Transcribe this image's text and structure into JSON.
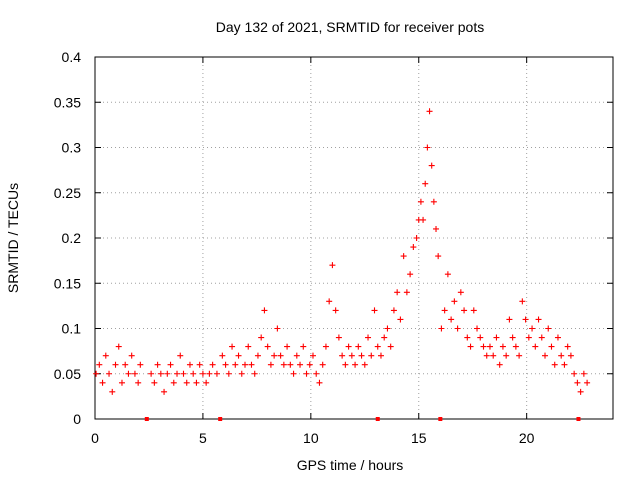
{
  "chart_data": {
    "type": "scatter",
    "title": "Day 132 of 2021, SRMTID for receiver pots",
    "xlabel": "GPS time / hours",
    "ylabel": "SRMTID / TECUs",
    "xlim": [
      0,
      24
    ],
    "ylim": [
      0,
      0.4
    ],
    "xticks": [
      0,
      5,
      10,
      15,
      20
    ],
    "yticks": [
      0,
      0.05,
      0.1,
      0.15,
      0.2,
      0.25,
      0.3,
      0.35,
      0.4
    ],
    "xtick_labels": [
      "0",
      "5",
      "10",
      "15",
      "20"
    ],
    "ytick_labels": [
      "0",
      "0.05",
      "0.1",
      "0.15",
      "0.2",
      "0.25",
      "0.3",
      "0.35",
      "0.4"
    ],
    "grid": true,
    "marker": "+",
    "color": "#ff0000",
    "series": [
      {
        "name": "SRMTID",
        "x": [
          0.05,
          0.2,
          0.35,
          0.5,
          0.65,
          0.8,
          0.95,
          1.1,
          1.25,
          1.4,
          1.55,
          1.7,
          1.85,
          2.0,
          2.1,
          2.6,
          2.75,
          2.9,
          3.05,
          3.2,
          3.35,
          3.5,
          3.65,
          3.8,
          3.95,
          4.1,
          4.25,
          4.4,
          4.55,
          4.7,
          4.85,
          5.0,
          5.15,
          5.3,
          5.45,
          5.65,
          5.9,
          6.05,
          6.2,
          6.35,
          6.5,
          6.65,
          6.8,
          6.95,
          7.1,
          7.25,
          7.4,
          7.55,
          7.7,
          7.85,
          8.0,
          8.15,
          8.3,
          8.45,
          8.6,
          8.75,
          8.9,
          9.05,
          9.2,
          9.35,
          9.5,
          9.65,
          9.8,
          9.95,
          10.1,
          10.25,
          10.4,
          10.55,
          10.7,
          10.85,
          11.0,
          11.15,
          11.3,
          11.45,
          11.6,
          11.75,
          11.9,
          12.05,
          12.2,
          12.35,
          12.5,
          12.65,
          12.8,
          12.95,
          13.1,
          13.25,
          13.4,
          13.55,
          13.7,
          13.85,
          14.0,
          14.15,
          14.3,
          14.45,
          14.6,
          14.75,
          14.9,
          15.0,
          15.1,
          15.2,
          15.3,
          15.4,
          15.5,
          15.6,
          15.7,
          15.8,
          15.9,
          16.05,
          16.2,
          16.35,
          16.5,
          16.65,
          16.8,
          16.95,
          17.1,
          17.25,
          17.4,
          17.55,
          17.7,
          17.85,
          18.0,
          18.15,
          18.3,
          18.45,
          18.6,
          18.75,
          18.9,
          19.05,
          19.2,
          19.35,
          19.5,
          19.65,
          19.8,
          19.95,
          20.1,
          20.25,
          20.4,
          20.55,
          20.7,
          20.85,
          21.0,
          21.15,
          21.3,
          21.45,
          21.6,
          21.75,
          21.9,
          22.05,
          22.2,
          22.35,
          22.5,
          22.65,
          22.8
        ],
        "y": [
          0.05,
          0.06,
          0.04,
          0.07,
          0.05,
          0.03,
          0.06,
          0.08,
          0.04,
          0.06,
          0.05,
          0.07,
          0.05,
          0.04,
          0.06,
          0.05,
          0.04,
          0.06,
          0.05,
          0.03,
          0.05,
          0.06,
          0.04,
          0.05,
          0.07,
          0.05,
          0.04,
          0.06,
          0.05,
          0.04,
          0.06,
          0.05,
          0.04,
          0.05,
          0.06,
          0.05,
          0.07,
          0.06,
          0.05,
          0.08,
          0.06,
          0.07,
          0.05,
          0.06,
          0.08,
          0.06,
          0.05,
          0.07,
          0.09,
          0.12,
          0.08,
          0.06,
          0.07,
          0.1,
          0.07,
          0.06,
          0.08,
          0.06,
          0.05,
          0.07,
          0.06,
          0.08,
          0.05,
          0.06,
          0.07,
          0.05,
          0.04,
          0.06,
          0.08,
          0.13,
          0.17,
          0.12,
          0.09,
          0.07,
          0.06,
          0.08,
          0.07,
          0.06,
          0.08,
          0.07,
          0.06,
          0.09,
          0.07,
          0.12,
          0.08,
          0.07,
          0.09,
          0.1,
          0.08,
          0.12,
          0.14,
          0.11,
          0.18,
          0.14,
          0.16,
          0.19,
          0.2,
          0.22,
          0.24,
          0.22,
          0.26,
          0.3,
          0.34,
          0.28,
          0.24,
          0.21,
          0.18,
          0.1,
          0.12,
          0.16,
          0.11,
          0.13,
          0.1,
          0.14,
          0.12,
          0.09,
          0.08,
          0.12,
          0.1,
          0.09,
          0.08,
          0.07,
          0.08,
          0.07,
          0.09,
          0.06,
          0.08,
          0.07,
          0.11,
          0.09,
          0.08,
          0.07,
          0.13,
          0.11,
          0.09,
          0.1,
          0.08,
          0.11,
          0.09,
          0.07,
          0.1,
          0.08,
          0.06,
          0.09,
          0.07,
          0.06,
          0.08,
          0.07,
          0.05,
          0.04,
          0.03,
          0.05,
          0.04
        ]
      }
    ],
    "zero_markers_x": [
      2.4,
      5.8,
      13.1,
      16.0,
      22.4
    ]
  }
}
